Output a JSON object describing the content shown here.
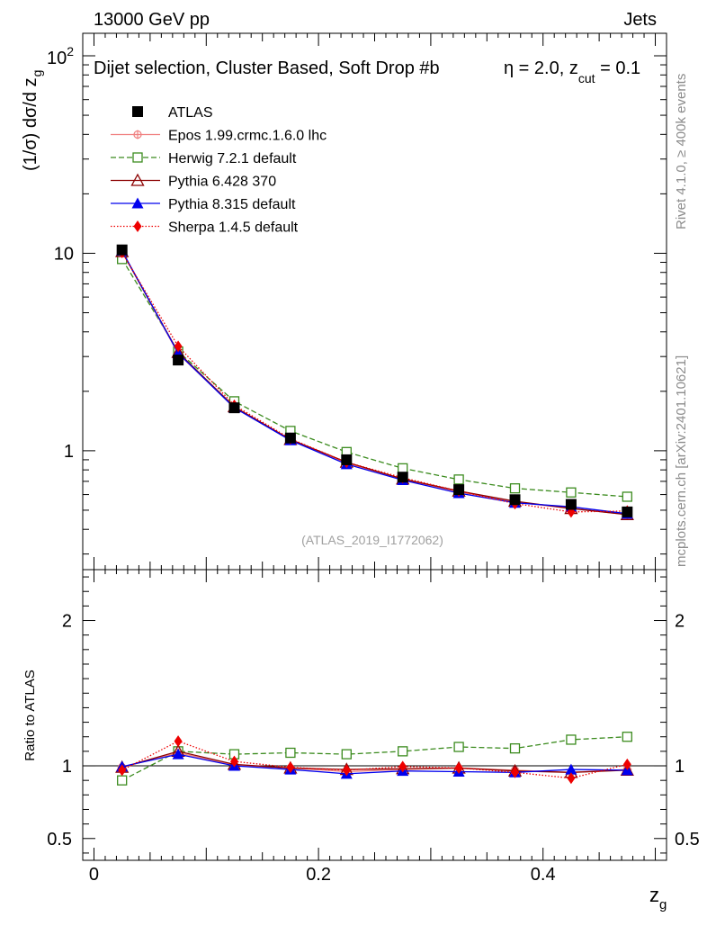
{
  "header": {
    "energy_label": "13000 GeV pp",
    "process_label": "Jets"
  },
  "side_labels": {
    "rivet": "Rivet 4.1.0, ≥ 400k events",
    "mcplots": "mcplots.cern.ch [arXiv:2401.10621]"
  },
  "chart_data": [
    {
      "type": "line",
      "panel": "main",
      "title": "Dijet selection, Cluster Based, Soft Drop #b, η = 2.0, z_cut = 0.1",
      "title_main": "Dijet selection, Cluster Based, Soft Drop #b",
      "title_eta": "η = 2.0, z",
      "title_sub": "cut",
      "title_tail": " = 0.1",
      "ylabel_main": "(1/σ) dσ/d z",
      "ylabel_sub": "g",
      "yscale": "log",
      "ylim": [
        0.25,
        130
      ],
      "xlim": [
        -0.01,
        0.51
      ],
      "y_ticks": [
        {
          "v": 1,
          "label": "1"
        },
        {
          "v": 10,
          "label": "10"
        },
        {
          "v": 100,
          "label": "10",
          "sup": "2"
        }
      ],
      "reference_label": "(ATLAS_2019_I1772062)",
      "x": [
        0.025,
        0.075,
        0.125,
        0.175,
        0.225,
        0.275,
        0.325,
        0.375,
        0.425,
        0.475
      ],
      "series": [
        {
          "key": "atlas",
          "name": "ATLAS",
          "color": "#000000",
          "marker": "square-filled",
          "values": [
            10.4,
            2.88,
            1.65,
            1.16,
            0.9,
            0.735,
            0.635,
            0.565,
            0.535,
            0.49
          ]
        },
        {
          "key": "epos",
          "name": "Epos 1.99.crmc.1.6.0 lhc",
          "color": "#f08080",
          "marker": "cross-circle",
          "dash": "",
          "values": [
            10.2,
            3.1,
            1.66,
            1.14,
            0.865,
            0.715,
            0.62,
            0.55,
            0.51,
            0.475
          ]
        },
        {
          "key": "herwig",
          "name": "Herwig 7.2.1 default",
          "color": "#3b8b1e",
          "marker": "square-open",
          "dash": "6,3",
          "values": [
            9.35,
            3.18,
            1.78,
            1.26,
            0.985,
            0.815,
            0.715,
            0.645,
            0.615,
            0.585
          ]
        },
        {
          "key": "pythia6",
          "name": "Pythia 6.428 370",
          "color": "#8b0000",
          "marker": "triangle-open",
          "dash": "",
          "values": [
            10.2,
            3.15,
            1.67,
            1.14,
            0.875,
            0.72,
            0.625,
            0.555,
            0.51,
            0.475
          ]
        },
        {
          "key": "pythia8",
          "name": "Pythia 8.315 default",
          "color": "#0000ee",
          "marker": "triangle-filled",
          "dash": "",
          "values": [
            10.3,
            3.12,
            1.65,
            1.13,
            0.855,
            0.71,
            0.61,
            0.545,
            0.52,
            0.48
          ]
        },
        {
          "key": "sherpa",
          "name": "Sherpa 1.4.5 default",
          "color": "#ee0000",
          "marker": "diamond-filled",
          "dash": "1.5,2",
          "values": [
            10.1,
            3.38,
            1.7,
            1.15,
            0.875,
            0.73,
            0.625,
            0.54,
            0.49,
            0.495
          ]
        }
      ]
    },
    {
      "type": "line",
      "panel": "ratio",
      "ylabel": "Ratio to ATLAS",
      "xlabel_main": "z",
      "xlabel_sub": "g",
      "ylim": [
        0.35,
        2.35
      ],
      "xlim": [
        -0.01,
        0.51
      ],
      "y_ticks": [
        {
          "v": 0.5,
          "label": "0.5"
        },
        {
          "v": 1,
          "label": "1"
        },
        {
          "v": 2,
          "label": "2"
        }
      ],
      "x_ticks": [
        {
          "v": 0,
          "label": "0"
        },
        {
          "v": 0.2,
          "label": "0.2"
        },
        {
          "v": 0.4,
          "label": "0.4"
        }
      ],
      "x": [
        0.025,
        0.075,
        0.125,
        0.175,
        0.225,
        0.275,
        0.325,
        0.375,
        0.425,
        0.475
      ],
      "series": [
        {
          "key": "epos",
          "name": "Epos 1.99.crmc.1.6.0 lhc",
          "color": "#f08080",
          "marker": "cross-circle",
          "dash": "",
          "values": [
            0.99,
            1.09,
            1.005,
            0.985,
            0.96,
            0.975,
            0.985,
            0.97,
            0.955,
            0.975
          ]
        },
        {
          "key": "herwig",
          "name": "Herwig 7.2.1 default",
          "color": "#3b8b1e",
          "marker": "square-open",
          "dash": "6,3",
          "values": [
            0.9,
            1.1,
            1.08,
            1.09,
            1.08,
            1.1,
            1.13,
            1.12,
            1.18,
            1.2
          ]
        },
        {
          "key": "pythia6",
          "name": "Pythia 6.428 370",
          "color": "#8b0000",
          "marker": "triangle-open",
          "dash": "",
          "values": [
            0.99,
            1.1,
            1.01,
            0.985,
            0.975,
            0.98,
            0.985,
            0.965,
            0.955,
            0.97
          ]
        },
        {
          "key": "pythia8",
          "name": "Pythia 8.315 default",
          "color": "#0000ee",
          "marker": "triangle-filled",
          "dash": "",
          "values": [
            0.995,
            1.08,
            1.0,
            0.975,
            0.945,
            0.965,
            0.96,
            0.955,
            0.975,
            0.97
          ]
        },
        {
          "key": "sherpa",
          "name": "Sherpa 1.4.5 default",
          "color": "#ee0000",
          "marker": "diamond-filled",
          "dash": "1.5,2",
          "values": [
            0.97,
            1.17,
            1.03,
            0.99,
            0.97,
            0.995,
            0.985,
            0.955,
            0.915,
            1.01
          ]
        }
      ]
    }
  ]
}
